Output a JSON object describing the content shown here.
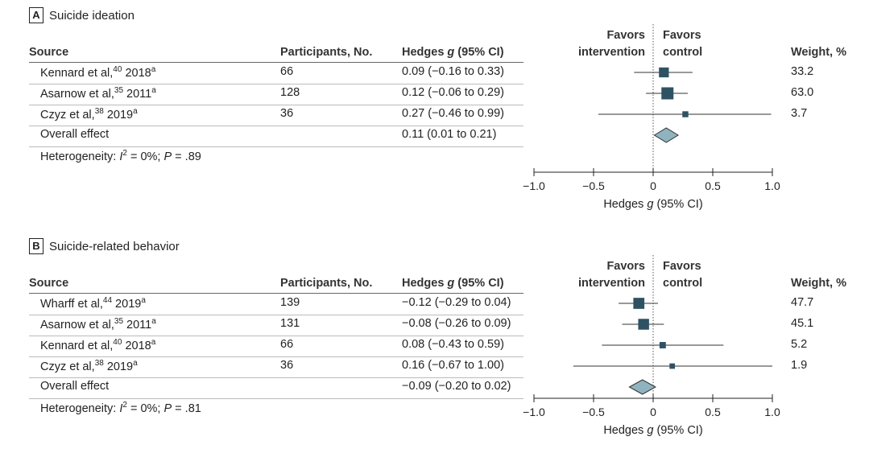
{
  "columns": {
    "source": "Source",
    "participants": "Participants, No.",
    "hedges_pre": "Hedges ",
    "hedges_g": "g",
    "hedges_post": " (95% CI)",
    "favors_left_1": "Favors",
    "favors_left_2": "intervention",
    "favors_right_1": "Favors",
    "favors_right_2": "control",
    "weight": "Weight, %"
  },
  "axis": {
    "ticks": [
      "−1.0",
      "−0.5",
      "0",
      "0.5",
      "1.0"
    ],
    "label_pre": "Hedges ",
    "label_g": "g",
    "label_post": " (95% CI)"
  },
  "colors": {
    "marker": "#2e5263",
    "diamond": "#8fb3bf"
  },
  "panels": [
    {
      "letter": "A",
      "title": "Suicide ideation",
      "rows": [
        {
          "author": "Kennard et al,",
          "ref": "40",
          "year": " 2018",
          "sup": "a",
          "participants": "66",
          "ci_text": "0.09 (−0.16 to 0.33)",
          "weight": "33.2"
        },
        {
          "author": "Asarnow et al,",
          "ref": "35",
          "year": " 2011",
          "sup": "a",
          "participants": "128",
          "ci_text": "0.12 (−0.06 to 0.29)",
          "weight": "63.0"
        },
        {
          "author": "Czyz et al,",
          "ref": "38",
          "year": " 2019",
          "sup": "a",
          "participants": "36",
          "ci_text": "0.27 (−0.46 to 0.99)",
          "weight": "3.7"
        }
      ],
      "overall": {
        "label": "Overall effect",
        "ci_text": "0.11 (0.01 to 0.21)"
      },
      "heterogeneity": {
        "pre": "Heterogeneity: ",
        "I": "I",
        "sup": "2",
        "mid": " = 0%; ",
        "P": "P",
        "post": " = .89"
      }
    },
    {
      "letter": "B",
      "title": "Suicide-related behavior",
      "rows": [
        {
          "author": "Wharff et al,",
          "ref": "44",
          "year": " 2019",
          "sup": "a",
          "participants": "139",
          "ci_text": "−0.12 (−0.29 to 0.04)",
          "weight": "47.7"
        },
        {
          "author": "Asarnow et al,",
          "ref": "35",
          "year": " 2011",
          "sup": "a",
          "participants": "131",
          "ci_text": "−0.08 (−0.26 to 0.09)",
          "weight": "45.1"
        },
        {
          "author": "Kennard et al,",
          "ref": "40",
          "year": " 2018",
          "sup": "a",
          "participants": "66",
          "ci_text": "0.08 (−0.43 to 0.59)",
          "weight": "5.2"
        },
        {
          "author": "Czyz et al,",
          "ref": "38",
          "year": " 2019",
          "sup": "a",
          "participants": "36",
          "ci_text": "0.16 (−0.67 to 1.00)",
          "weight": "1.9"
        }
      ],
      "overall": {
        "label": "Overall effect",
        "ci_text": "−0.09 (−0.20 to 0.02)"
      },
      "heterogeneity": {
        "pre": "Heterogeneity: ",
        "I": "I",
        "sup": "2",
        "mid": " = 0%; ",
        "P": "P",
        "post": " = .81"
      }
    }
  ],
  "chart_data": [
    {
      "type": "forest",
      "title": "Suicide ideation",
      "xlabel": "Hedges g (95% CI)",
      "xlim": [
        -1.0,
        1.0
      ],
      "studies": [
        {
          "name": "Kennard et al, 2018",
          "g": 0.09,
          "lo": -0.16,
          "hi": 0.33,
          "weight": 33.2
        },
        {
          "name": "Asarnow et al, 2011",
          "g": 0.12,
          "lo": -0.06,
          "hi": 0.29,
          "weight": 63.0
        },
        {
          "name": "Czyz et al, 2019",
          "g": 0.27,
          "lo": -0.46,
          "hi": 0.99,
          "weight": 3.7
        }
      ],
      "overall": {
        "g": 0.11,
        "lo": 0.01,
        "hi": 0.21
      }
    },
    {
      "type": "forest",
      "title": "Suicide-related behavior",
      "xlabel": "Hedges g (95% CI)",
      "xlim": [
        -1.0,
        1.0
      ],
      "studies": [
        {
          "name": "Wharff et al, 2019",
          "g": -0.12,
          "lo": -0.29,
          "hi": 0.04,
          "weight": 47.7
        },
        {
          "name": "Asarnow et al, 2011",
          "g": -0.08,
          "lo": -0.26,
          "hi": 0.09,
          "weight": 45.1
        },
        {
          "name": "Kennard et al, 2018",
          "g": 0.08,
          "lo": -0.43,
          "hi": 0.59,
          "weight": 5.2
        },
        {
          "name": "Czyz et al, 2019",
          "g": 0.16,
          "lo": -0.67,
          "hi": 1.0,
          "weight": 1.9
        }
      ],
      "overall": {
        "g": -0.09,
        "lo": -0.2,
        "hi": 0.02
      }
    }
  ]
}
